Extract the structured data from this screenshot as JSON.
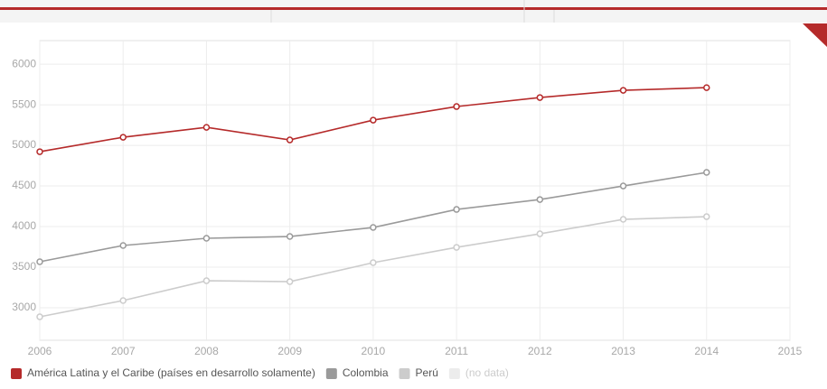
{
  "chart_data": {
    "type": "line",
    "x": [
      2006,
      2007,
      2008,
      2009,
      2010,
      2011,
      2012,
      2013,
      2014
    ],
    "series": [
      {
        "name": "América Latina y el Caribe (países en desarrollo solamente)",
        "color": "#b52a2a",
        "values": [
          4922,
          5100,
          5222,
          5067,
          5311,
          5478,
          5589,
          5678,
          5711
        ]
      },
      {
        "name": "Colombia",
        "color": "#9a9a9a",
        "values": [
          3567,
          3767,
          3856,
          3878,
          3989,
          4211,
          4333,
          4500,
          4667
        ]
      },
      {
        "name": "Perú",
        "color": "#cccccc",
        "values": [
          2889,
          3089,
          3333,
          3322,
          3556,
          3744,
          3911,
          4089,
          4122
        ]
      }
    ],
    "no_data_label": "(no data)",
    "no_data_color": "#ececec",
    "xlim": [
      2006,
      2015
    ],
    "xticks": [
      2006,
      2007,
      2008,
      2009,
      2010,
      2011,
      2012,
      2013,
      2014,
      2015
    ],
    "ylim": [
      2600,
      6290
    ],
    "yticks": [
      3000,
      3500,
      4000,
      4500,
      5000,
      5500,
      6000
    ],
    "grid": true
  }
}
